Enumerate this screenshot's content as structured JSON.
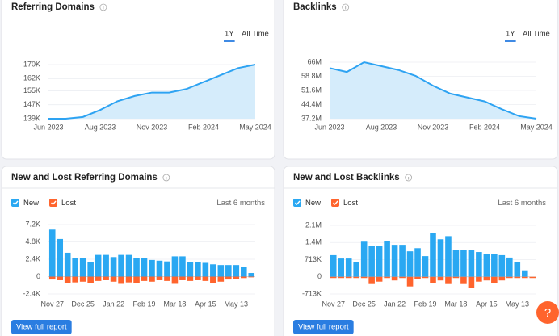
{
  "chart_data": [
    {
      "type": "line",
      "title": "Referring Domains",
      "tabs": [
        "1Y",
        "All Time"
      ],
      "color": "#2ea3f2",
      "categories": [
        "Jun 2023",
        null,
        null,
        "Aug 2023",
        null,
        null,
        "Nov 2023",
        null,
        null,
        "Feb 2024",
        null,
        null,
        "May 2024"
      ],
      "values": [
        139000,
        139000,
        140000,
        144000,
        149000,
        152000,
        154000,
        154000,
        156000,
        160000,
        164000,
        168000,
        170000
      ],
      "ylim": [
        139000,
        170000
      ],
      "yticks": [
        {
          "value": 139000,
          "label": "139K"
        },
        {
          "value": 147000,
          "label": "147K"
        },
        {
          "value": 155000,
          "label": "155K"
        },
        {
          "value": 162000,
          "label": "162K"
        },
        {
          "value": 170000,
          "label": "170K"
        }
      ],
      "grid": true
    },
    {
      "type": "line",
      "title": "Backlinks",
      "tabs": [
        "1Y",
        "All Time"
      ],
      "color": "#2ea3f2",
      "categories": [
        "Jun 2023",
        null,
        null,
        "Aug 2023",
        null,
        null,
        "Nov 2023",
        null,
        null,
        "Feb 2024",
        null,
        null,
        "May 2024"
      ],
      "values": [
        63000000,
        61000000,
        66000000,
        64000000,
        62000000,
        59000000,
        54000000,
        50000000,
        48000000,
        46000000,
        42000000,
        38500000,
        37200000
      ],
      "ylim": [
        37200000,
        66000000
      ],
      "yticks": [
        {
          "value": 37200000,
          "label": "37.2M"
        },
        {
          "value": 44400000,
          "label": "44.4M"
        },
        {
          "value": 51600000,
          "label": "51.6M"
        },
        {
          "value": 58800000,
          "label": "58.8M"
        },
        {
          "value": 66000000,
          "label": "66M"
        }
      ],
      "grid": true
    },
    {
      "type": "bar",
      "title": "New and Lost Referring Domains",
      "period": "Last 6 months",
      "button": "View full report",
      "categories": [
        "Nov 27",
        null,
        null,
        null,
        "Dec 25",
        null,
        null,
        null,
        "Jan 22",
        null,
        null,
        null,
        "Feb 19",
        null,
        null,
        null,
        "Mar 18",
        null,
        null,
        null,
        "Apr 15",
        null,
        null,
        null,
        "May 13",
        null,
        null
      ],
      "series": [
        {
          "name": "New",
          "color": "#2aa8f2",
          "values": [
            6500,
            5200,
            3300,
            2600,
            2600,
            2000,
            3000,
            3000,
            2700,
            3000,
            3000,
            2600,
            2600,
            2300,
            2200,
            2100,
            2800,
            2800,
            2000,
            2000,
            1900,
            1700,
            1600,
            1600,
            1600,
            1300,
            500
          ]
        },
        {
          "name": "Lost",
          "color": "#ff642d",
          "values": [
            -400,
            -500,
            -900,
            -800,
            -700,
            -900,
            -600,
            -500,
            -700,
            -1000,
            -800,
            -900,
            -600,
            -700,
            -500,
            -600,
            -1000,
            -500,
            -600,
            -500,
            -600,
            -900,
            -700,
            -400,
            -300,
            -200,
            -100
          ]
        }
      ],
      "ylim": [
        -2400,
        7200
      ],
      "yticks": [
        {
          "value": -2400,
          "label": "-2.4K"
        },
        0,
        {
          "value": 2400,
          "label": "2.4K"
        },
        {
          "value": 4800,
          "label": "4.8K"
        },
        {
          "value": 7200,
          "label": "7.2K"
        }
      ],
      "grid": true
    },
    {
      "type": "bar",
      "title": "New and Lost Backlinks",
      "period": "Last 6 months",
      "button": "View full report",
      "categories": [
        "Nov 27",
        null,
        null,
        null,
        "Dec 25",
        null,
        null,
        null,
        "Jan 22",
        null,
        null,
        null,
        "Feb 19",
        null,
        null,
        null,
        "Mar 18",
        null,
        null,
        null,
        "Apr 15",
        null,
        null,
        null,
        "May 13",
        null,
        null
      ],
      "series": [
        {
          "name": "New",
          "color": "#2aa8f2",
          "values": [
            900000,
            760000,
            760000,
            600000,
            1460000,
            1290000,
            1290000,
            1490000,
            1330000,
            1330000,
            1060000,
            1190000,
            860000,
            1820000,
            1560000,
            1690000,
            1130000,
            1130000,
            1100000,
            1030000,
            960000,
            960000,
            900000,
            800000,
            600000,
            270000,
            0
          ]
        },
        {
          "name": "Lost",
          "color": "#ff642d",
          "values": [
            -50000,
            -50000,
            -50000,
            -50000,
            -50000,
            -300000,
            -200000,
            -50000,
            -150000,
            -50000,
            -400000,
            -100000,
            -50000,
            -250000,
            -150000,
            -300000,
            -50000,
            -300000,
            -450000,
            -200000,
            -150000,
            -250000,
            -150000,
            -50000,
            -50000,
            -50000,
            -50000
          ]
        }
      ],
      "ylim": [
        -713000,
        2139000
      ],
      "yticks": [
        {
          "value": -713000,
          "label": "-713K"
        },
        0,
        {
          "value": 713000,
          "label": "713K"
        },
        {
          "value": 1426000,
          "label": "1.4M"
        },
        {
          "value": 2139000,
          "label": "2.1M"
        }
      ],
      "grid": true
    }
  ],
  "help_button": "?"
}
